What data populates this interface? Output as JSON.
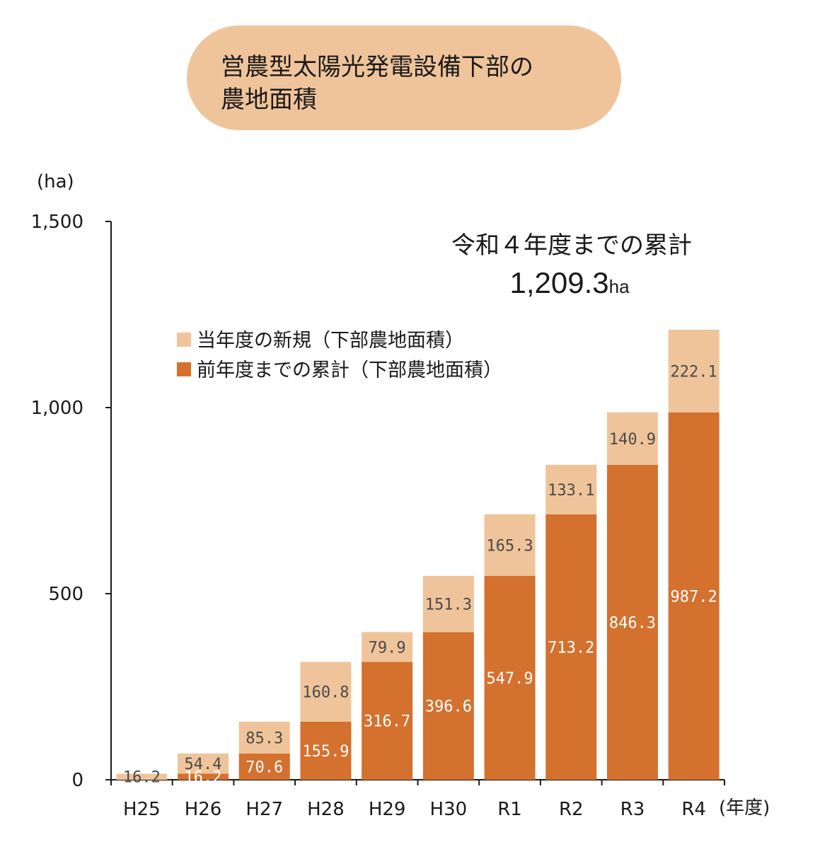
{
  "title_line1": "営農型太陽光発電設備下部の",
  "title_line2": "農地面積",
  "annotation": {
    "line1": "令和４年度までの累計",
    "value": "1,209.3",
    "unit": "ha"
  },
  "colors": {
    "prior": "#d4712f",
    "new": "#f0c49a",
    "title_bg": "#f0c49a",
    "axis": "#1a1a1a"
  },
  "chart_data": {
    "type": "bar",
    "stacked": true,
    "ylabel": "(ha)",
    "xlabel": "(年度)",
    "ylim": [
      0,
      1500
    ],
    "yticks": [
      0,
      500,
      1000,
      1500
    ],
    "ytick_labels": [
      "0",
      "500",
      "1,000",
      "1,500"
    ],
    "categories": [
      "H25",
      "H26",
      "H27",
      "H28",
      "H29",
      "H30",
      "R1",
      "R2",
      "R3",
      "R4"
    ],
    "legend_position": "upper-left",
    "series": [
      {
        "name": "前年度までの累計（下部農地面積）",
        "values": [
          0,
          16.2,
          70.6,
          155.9,
          316.7,
          396.6,
          547.9,
          713.2,
          846.3,
          987.2
        ],
        "labels": [
          "",
          "16.2",
          "70.6",
          "155.9",
          "316.7",
          "396.6",
          "547.9",
          "713.2",
          "846.3",
          "987.2"
        ]
      },
      {
        "name": "当年度の新規（下部農地面積）",
        "values": [
          16.2,
          54.4,
          85.3,
          160.8,
          79.9,
          151.3,
          165.3,
          133.1,
          140.9,
          222.1
        ],
        "labels": [
          "16.2",
          "54.4",
          "85.3",
          "160.8",
          "79.9",
          "151.3",
          "165.3",
          "133.1",
          "140.9",
          "222.1"
        ]
      }
    ]
  }
}
